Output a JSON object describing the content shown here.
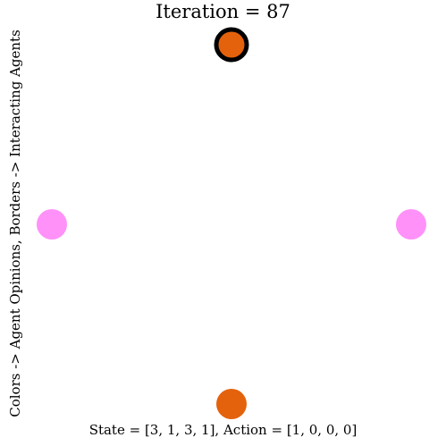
{
  "title": "Iteration = 87",
  "ylabel": "Colors -> Agent Opinions, Borders -> Interacting Agents",
  "footer": "State = [3, 1, 3, 1], Action = [1, 0, 0, 0]",
  "colors": {
    "orange": "#e4620c",
    "pink": "#ff91f9",
    "border": "#000000"
  },
  "agents": [
    {
      "name": "agent-top",
      "opinion": 3,
      "interacting": true,
      "color": "#e4620c"
    },
    {
      "name": "agent-right",
      "opinion": 1,
      "interacting": false,
      "color": "#ff91f9"
    },
    {
      "name": "agent-bottom",
      "opinion": 3,
      "interacting": false,
      "color": "#e4620c"
    },
    {
      "name": "agent-left",
      "opinion": 1,
      "interacting": false,
      "color": "#ff91f9"
    }
  ]
}
